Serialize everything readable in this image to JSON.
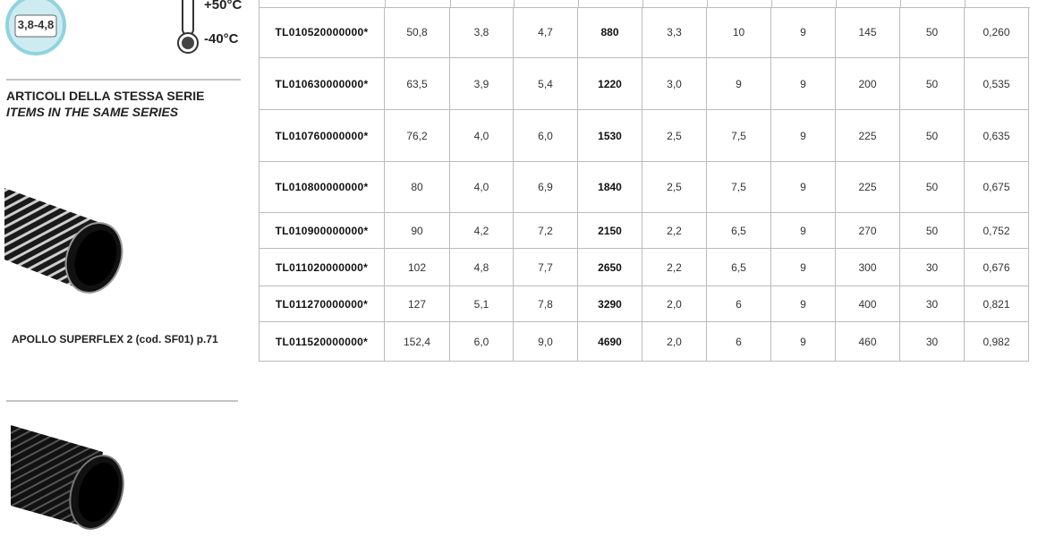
{
  "badge": {
    "label": "3,8-4,8"
  },
  "temperature": {
    "max": "+50°C",
    "min": "-40°C"
  },
  "series_heading": {
    "it": "ARTICOLI DELLA STESSA SERIE",
    "en": "ITEMS IN THE SAME SERIES"
  },
  "related_items": [
    {
      "caption": "APOLLO SUPERFLEX 2  (cod. SF01) p.71"
    }
  ],
  "table": {
    "rows": [
      [
        "TL010520000000*",
        "50,8",
        "3,8",
        "4,7",
        "880",
        "3,3",
        "10",
        "9",
        "145",
        "50",
        "0,260"
      ],
      [
        "TL010630000000*",
        "63,5",
        "3,9",
        "5,4",
        "1220",
        "3,0",
        "9",
        "9",
        "200",
        "50",
        "0,535"
      ],
      [
        "TL010760000000*",
        "76,2",
        "4,0",
        "6,0",
        "1530",
        "2,5",
        "7,5",
        "9",
        "225",
        "50",
        "0,635"
      ],
      [
        "TL010800000000*",
        "80",
        "4,0",
        "6,9",
        "1840",
        "2,5",
        "7,5",
        "9",
        "225",
        "50",
        "0,675"
      ],
      [
        "TL010900000000*",
        "90",
        "4,2",
        "7,2",
        "2150",
        "2,2",
        "6,5",
        "9",
        "270",
        "50",
        "0,752"
      ],
      [
        "TL011020000000*",
        "102",
        "4,8",
        "7,7",
        "2650",
        "2,2",
        "6,5",
        "9",
        "300",
        "30",
        "0,676"
      ],
      [
        "TL011270000000*",
        "127",
        "5,1",
        "7,8",
        "3290",
        "2,0",
        "6",
        "9",
        "400",
        "30",
        "0,821"
      ],
      [
        "TL011520000000*",
        "152,4",
        "6,0",
        "9,0",
        "4690",
        "2,0",
        "6",
        "9",
        "460",
        "30",
        "0,982"
      ]
    ]
  }
}
